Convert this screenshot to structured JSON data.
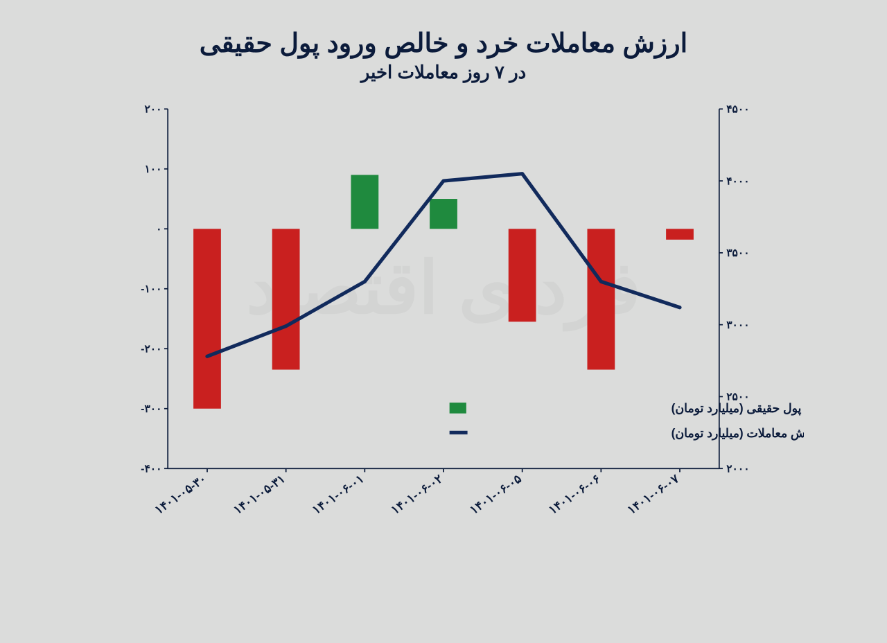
{
  "chart": {
    "type": "bar+line",
    "title": "ارزش معاملات خرد و خالص ورود پول حقیقی",
    "subtitle": "در ۷ روز معاملات اخیر",
    "background_color": "#dbdcdb",
    "axis_color": "#0b1b3b",
    "text_color": "#0b1b3b",
    "watermark": "فردای اقتصاد",
    "watermark_color": "#cbcccb",
    "categories": [
      "۱۴۰۱-۰۵-۳۰",
      "۱۴۰۱-۰۵-۳۱",
      "۱۴۰۱-۰۶-۰۱",
      "۱۴۰۱-۰۶-۰۲",
      "۱۴۰۱-۰۶-۰۵",
      "۱۴۰۱-۰۶-۰۶",
      "۱۴۰۱-۰۶-۰۷"
    ],
    "bars": {
      "label": "خالص ورود پول حقیقی (میلیارد تومان)",
      "values": [
        -300,
        -235,
        90,
        50,
        -155,
        -235,
        -18
      ],
      "positive_color": "#1f8a3e",
      "negative_color": "#c9201f",
      "bar_width": 0.35
    },
    "line": {
      "label": "ارزش معاملات (میلیارد تومان)",
      "values": [
        2780,
        2990,
        3300,
        4000,
        4050,
        3300,
        3120
      ],
      "color": "#112a5c",
      "width": 6
    },
    "y_left": {
      "min": -400,
      "max": 200,
      "step": 100,
      "ticks": [
        "۲۰۰",
        "۱۰۰",
        "۰",
        "-۱۰۰",
        "-۲۰۰",
        "-۳۰۰",
        "-۴۰۰"
      ]
    },
    "y_right": {
      "min": 2000,
      "max": 4500,
      "step": 500,
      "ticks": [
        "۴۵۰۰",
        "۴۰۰۰",
        "۳۵۰۰",
        "۳۰۰۰",
        "۲۵۰۰",
        "۲۰۰۰"
      ]
    },
    "title_fontsize": 38,
    "subtitle_fontsize": 26,
    "tick_fontsize": 18,
    "legend_fontsize": 20
  }
}
